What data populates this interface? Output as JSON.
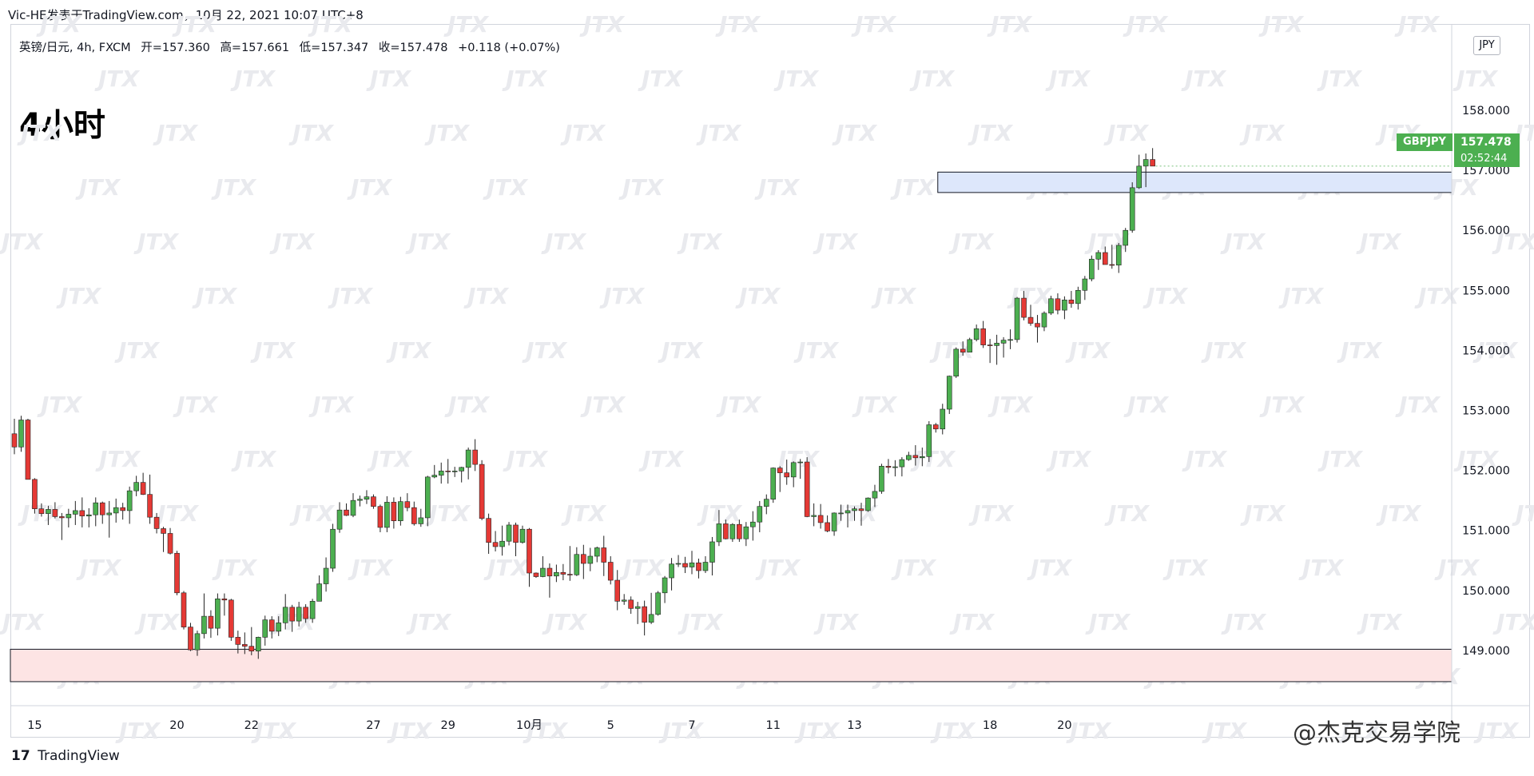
{
  "header": {
    "title": "Vic-HE发表于TradingView.com，10月 22, 2021 10:07 UTC+8"
  },
  "ohlc": {
    "symbol": "英镑/日元, 4h, FXCM",
    "open": "开=157.360",
    "high": "高=157.661",
    "low": "低=157.347",
    "close": "收=157.478",
    "change": "+0.118 (+0.07%)"
  },
  "timeframe_label": "4小时",
  "currency_badge": "JPY",
  "price_tag": {
    "symbol": "GBPJPY",
    "price": "157.478",
    "countdown": "02:52:44"
  },
  "brand": {
    "logo": "17",
    "name": "TradingView"
  },
  "watermark": "JTX",
  "credit": "@杰克交易学院",
  "colors": {
    "up": "#4caf50",
    "down": "#e53935",
    "support_zone": "#dde7fb",
    "demand_zone": "#fde4e4"
  },
  "chart_data": {
    "type": "candlestick",
    "title": "",
    "xlabel": "",
    "ylabel": "",
    "ylim": [
      148.0,
      159.2
    ],
    "y_ticks": [
      "149.000",
      "150.000",
      "151.000",
      "152.000",
      "153.000",
      "154.000",
      "155.000",
      "156.000",
      "157.000",
      "158.000"
    ],
    "x_ticks": [
      {
        "label": "15",
        "i": 3
      },
      {
        "label": "20",
        "i": 24
      },
      {
        "label": "22",
        "i": 35
      },
      {
        "label": "27",
        "i": 53
      },
      {
        "label": "29",
        "i": 64
      },
      {
        "label": "10月",
        "i": 76
      },
      {
        "label": "5",
        "i": 88
      },
      {
        "label": "7",
        "i": 100
      },
      {
        "label": "11",
        "i": 112
      },
      {
        "label": "13",
        "i": 124
      },
      {
        "label": "18",
        "i": 144
      },
      {
        "label": "20",
        "i": 155
      }
    ],
    "zones": [
      {
        "name": "support",
        "from": 156.63,
        "to": 156.97,
        "start_i": 137,
        "end_i": 182
      },
      {
        "name": "demand",
        "from": 148.48,
        "to": 149.02,
        "start_i": 0,
        "end_i": 182
      }
    ],
    "candles": [
      [
        152.61,
        152.86,
        152.27,
        152.39
      ],
      [
        152.39,
        152.91,
        152.31,
        152.84
      ],
      [
        152.84,
        152.86,
        151.85,
        151.85
      ],
      [
        151.85,
        151.87,
        151.28,
        151.36
      ],
      [
        151.36,
        151.45,
        151.23,
        151.28
      ],
      [
        151.28,
        151.41,
        151.09,
        151.35
      ],
      [
        151.35,
        151.47,
        151.2,
        151.23
      ],
      [
        151.23,
        151.29,
        150.84,
        151.21
      ],
      [
        151.21,
        151.36,
        151.05,
        151.27
      ],
      [
        151.27,
        151.49,
        151.09,
        151.33
      ],
      [
        151.33,
        151.55,
        151.05,
        151.24
      ],
      [
        151.24,
        151.37,
        151.05,
        151.26
      ],
      [
        151.26,
        151.55,
        151.07,
        151.46
      ],
      [
        151.46,
        151.48,
        151.11,
        151.26
      ],
      [
        151.26,
        151.49,
        150.88,
        151.29
      ],
      [
        151.29,
        151.53,
        151.13,
        151.38
      ],
      [
        151.38,
        151.46,
        151.18,
        151.33
      ],
      [
        151.33,
        151.73,
        151.11,
        151.66
      ],
      [
        151.66,
        151.91,
        151.57,
        151.8
      ],
      [
        151.8,
        151.96,
        151.59,
        151.6
      ],
      [
        151.6,
        151.93,
        151.11,
        151.22
      ],
      [
        151.22,
        151.29,
        150.95,
        151.03
      ],
      [
        151.03,
        151.06,
        150.64,
        150.95
      ],
      [
        150.95,
        151.04,
        150.6,
        150.62
      ],
      [
        150.62,
        150.66,
        149.92,
        149.96
      ],
      [
        149.96,
        149.99,
        149.35,
        149.39
      ],
      [
        149.39,
        149.46,
        148.99,
        149.01
      ],
      [
        149.01,
        149.33,
        148.91,
        149.28
      ],
      [
        149.28,
        149.95,
        149.2,
        149.57
      ],
      [
        149.57,
        149.67,
        149.21,
        149.37
      ],
      [
        149.37,
        149.95,
        149.25,
        149.86
      ],
      [
        149.86,
        149.95,
        149.58,
        149.84
      ],
      [
        149.84,
        149.86,
        149.16,
        149.22
      ],
      [
        149.22,
        149.33,
        148.95,
        149.1
      ],
      [
        149.1,
        149.3,
        148.94,
        149.07
      ],
      [
        149.07,
        149.39,
        148.92,
        148.99
      ],
      [
        148.99,
        149.23,
        148.86,
        149.22
      ],
      [
        149.22,
        149.58,
        149.08,
        149.51
      ],
      [
        149.51,
        149.57,
        149.2,
        149.32
      ],
      [
        149.32,
        149.57,
        149.24,
        149.46
      ],
      [
        149.46,
        149.94,
        149.35,
        149.72
      ],
      [
        149.72,
        149.76,
        149.31,
        149.49
      ],
      [
        149.49,
        149.81,
        149.4,
        149.72
      ],
      [
        149.72,
        149.77,
        149.46,
        149.53
      ],
      [
        149.53,
        149.86,
        149.46,
        149.82
      ],
      [
        149.82,
        150.25,
        149.82,
        150.11
      ],
      [
        150.11,
        150.55,
        149.98,
        150.37
      ],
      [
        150.37,
        151.11,
        150.31,
        151.02
      ],
      [
        151.02,
        151.47,
        150.96,
        151.34
      ],
      [
        151.34,
        151.45,
        151.24,
        151.25
      ],
      [
        151.25,
        151.62,
        151.22,
        151.5
      ],
      [
        151.5,
        151.58,
        151.4,
        151.52
      ],
      [
        151.52,
        151.67,
        151.44,
        151.56
      ],
      [
        151.56,
        151.6,
        151.36,
        151.4
      ],
      [
        151.4,
        151.43,
        150.97,
        151.05
      ],
      [
        151.05,
        151.57,
        150.97,
        151.47
      ],
      [
        151.47,
        151.55,
        151.03,
        151.16
      ],
      [
        151.16,
        151.56,
        151.08,
        151.48
      ],
      [
        151.48,
        151.62,
        151.32,
        151.38
      ],
      [
        151.38,
        151.48,
        151.08,
        151.11
      ],
      [
        151.11,
        151.36,
        151.06,
        151.21
      ],
      [
        151.21,
        151.91,
        151.07,
        151.89
      ],
      [
        151.89,
        152.09,
        151.87,
        151.92
      ],
      [
        151.92,
        152.13,
        151.78,
        151.99
      ],
      [
        151.99,
        152.19,
        151.78,
        151.98
      ],
      [
        151.98,
        152.06,
        151.89,
        151.99
      ],
      [
        151.99,
        152.06,
        151.8,
        152.05
      ],
      [
        152.05,
        152.38,
        151.85,
        152.34
      ],
      [
        152.34,
        152.52,
        151.99,
        152.1
      ],
      [
        152.1,
        152.17,
        151.17,
        151.2
      ],
      [
        151.2,
        151.28,
        150.61,
        150.8
      ],
      [
        150.8,
        150.99,
        150.65,
        150.73
      ],
      [
        150.73,
        151.08,
        150.58,
        150.82
      ],
      [
        150.82,
        151.14,
        150.75,
        151.09
      ],
      [
        151.09,
        151.13,
        150.57,
        150.8
      ],
      [
        150.8,
        151.08,
        150.78,
        151.02
      ],
      [
        151.02,
        151.04,
        150.06,
        150.29
      ],
      [
        150.29,
        150.3,
        150.21,
        150.23
      ],
      [
        150.23,
        150.57,
        150.22,
        150.37
      ],
      [
        150.37,
        150.45,
        149.88,
        150.24
      ],
      [
        150.24,
        150.43,
        150.14,
        150.3
      ],
      [
        150.3,
        150.44,
        150.17,
        150.27
      ],
      [
        150.27,
        150.74,
        150.16,
        150.26
      ],
      [
        150.26,
        150.72,
        150.24,
        150.6
      ],
      [
        150.6,
        150.76,
        150.19,
        150.45
      ],
      [
        150.45,
        150.71,
        150.32,
        150.57
      ],
      [
        150.57,
        150.73,
        150.47,
        150.71
      ],
      [
        150.71,
        150.91,
        150.24,
        150.47
      ],
      [
        150.47,
        150.57,
        150.1,
        150.17
      ],
      [
        150.17,
        150.34,
        149.67,
        149.82
      ],
      [
        149.82,
        149.94,
        149.76,
        149.84
      ],
      [
        149.84,
        149.9,
        149.61,
        149.7
      ],
      [
        149.7,
        149.81,
        149.44,
        149.73
      ],
      [
        149.73,
        149.83,
        149.25,
        149.47
      ],
      [
        149.47,
        149.96,
        149.44,
        149.6
      ],
      [
        149.6,
        149.99,
        149.58,
        149.96
      ],
      [
        149.96,
        150.24,
        149.79,
        150.21
      ],
      [
        150.21,
        150.54,
        150.0,
        150.44
      ],
      [
        150.44,
        150.59,
        150.39,
        150.45
      ],
      [
        150.45,
        150.56,
        150.29,
        150.39
      ],
      [
        150.39,
        150.66,
        150.27,
        150.46
      ],
      [
        150.46,
        150.53,
        150.2,
        150.33
      ],
      [
        150.33,
        150.57,
        150.29,
        150.47
      ],
      [
        150.47,
        150.89,
        150.25,
        150.81
      ],
      [
        150.81,
        151.34,
        150.74,
        151.11
      ],
      [
        151.11,
        151.18,
        150.85,
        150.86
      ],
      [
        150.86,
        151.12,
        150.81,
        151.1
      ],
      [
        151.1,
        151.18,
        150.81,
        150.86
      ],
      [
        150.86,
        151.14,
        150.74,
        151.06
      ],
      [
        151.06,
        151.32,
        150.83,
        151.14
      ],
      [
        151.14,
        151.49,
        150.97,
        151.4
      ],
      [
        151.4,
        151.6,
        151.27,
        151.52
      ],
      [
        151.52,
        152.05,
        151.46,
        152.04
      ],
      [
        152.04,
        152.07,
        151.64,
        151.96
      ],
      [
        151.96,
        152.18,
        151.76,
        151.89
      ],
      [
        151.89,
        152.15,
        151.72,
        152.13
      ],
      [
        152.13,
        152.19,
        151.86,
        152.14
      ],
      [
        152.14,
        152.22,
        151.22,
        151.23
      ],
      [
        151.23,
        151.45,
        151.07,
        151.25
      ],
      [
        151.25,
        151.44,
        151.03,
        151.13
      ],
      [
        151.13,
        151.25,
        150.97,
        150.99
      ],
      [
        150.99,
        151.3,
        150.91,
        151.29
      ],
      [
        151.29,
        151.43,
        151.16,
        151.29
      ],
      [
        151.29,
        151.43,
        151.05,
        151.33
      ],
      [
        151.33,
        151.4,
        151.16,
        151.36
      ],
      [
        151.36,
        151.46,
        151.08,
        151.33
      ],
      [
        151.33,
        151.55,
        151.31,
        151.54
      ],
      [
        151.54,
        151.76,
        151.39,
        151.65
      ],
      [
        151.65,
        152.11,
        151.61,
        152.07
      ],
      [
        152.07,
        152.19,
        151.95,
        152.05
      ],
      [
        152.05,
        152.17,
        151.9,
        152.06
      ],
      [
        152.06,
        152.22,
        151.9,
        152.18
      ],
      [
        152.18,
        152.31,
        152.16,
        152.25
      ]
    ],
    "candles_rest": [
      [
        152.25,
        152.42,
        152.08,
        152.21
      ],
      [
        152.21,
        152.38,
        152.07,
        152.23
      ],
      [
        152.23,
        152.82,
        152.14,
        152.76
      ],
      [
        152.76,
        152.79,
        152.63,
        152.69
      ],
      [
        152.69,
        153.11,
        152.6,
        153.02
      ],
      [
        153.02,
        153.58,
        152.94,
        153.57
      ],
      [
        153.57,
        154.05,
        153.54,
        154.02
      ],
      [
        154.02,
        154.15,
        153.91,
        153.97
      ],
      [
        153.97,
        154.21,
        153.98,
        154.18
      ],
      [
        154.18,
        154.43,
        154.15,
        154.36
      ],
      [
        154.36,
        154.49,
        154.04,
        154.09
      ],
      [
        154.09,
        154.19,
        153.79,
        154.08
      ],
      [
        154.08,
        154.26,
        153.76,
        154.12
      ],
      [
        154.12,
        154.22,
        153.88,
        154.17
      ],
      [
        154.17,
        154.35,
        154.02,
        154.18
      ],
      [
        154.18,
        154.89,
        154.13,
        154.87
      ],
      [
        154.87,
        154.99,
        154.5,
        154.55
      ],
      [
        154.55,
        154.76,
        154.41,
        154.45
      ],
      [
        154.45,
        154.59,
        154.13,
        154.39
      ],
      [
        154.39,
        154.65,
        154.32,
        154.62
      ],
      [
        154.62,
        154.91,
        154.59,
        154.86
      ],
      [
        154.86,
        154.95,
        154.6,
        154.67
      ],
      [
        154.67,
        154.9,
        154.52,
        154.84
      ],
      [
        154.84,
        154.99,
        154.71,
        154.78
      ],
      [
        154.78,
        155.06,
        154.68,
        155.0
      ],
      [
        155.0,
        155.24,
        154.84,
        155.19
      ],
      [
        155.19,
        155.58,
        155.15,
        155.52
      ],
      [
        155.52,
        155.67,
        155.34,
        155.63
      ],
      [
        155.63,
        155.73,
        155.43,
        155.43
      ],
      [
        155.43,
        155.76,
        155.36,
        155.42
      ],
      [
        155.42,
        155.79,
        155.29,
        155.75
      ],
      [
        155.75,
        156.04,
        155.64,
        156.0
      ],
      [
        156.0,
        156.8,
        155.96,
        156.71
      ],
      [
        156.71,
        157.26,
        156.69,
        157.07
      ],
      [
        157.07,
        157.28,
        156.72,
        157.18
      ],
      [
        157.18,
        157.37,
        157.08,
        157.07
      ]
    ]
  }
}
